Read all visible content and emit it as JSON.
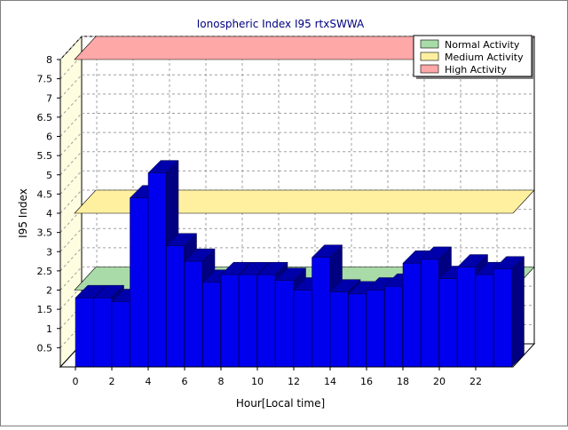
{
  "chart_data": {
    "type": "bar",
    "title": "Ionospheric Index I95 rtxSWWA",
    "xlabel": "Hour[Local time]",
    "ylabel": "I95 Index",
    "ylim": [
      0,
      8
    ],
    "yticks": [
      "0.5",
      "1",
      "1.5",
      "2",
      "2.5",
      "3",
      "3.5",
      "4",
      "4.5",
      "5",
      "5.5",
      "6",
      "6.5",
      "7",
      "7.5",
      "8"
    ],
    "xticks": [
      "0",
      "2",
      "4",
      "6",
      "8",
      "10",
      "12",
      "14",
      "16",
      "18",
      "20",
      "22"
    ],
    "hours": [
      0,
      1,
      2,
      3,
      4,
      5,
      6,
      7,
      8,
      9,
      10,
      11,
      12,
      13,
      14,
      15,
      16,
      17,
      18,
      19,
      20,
      21,
      22,
      23
    ],
    "values": [
      1.8,
      1.8,
      1.7,
      4.4,
      5.05,
      3.15,
      2.75,
      2.2,
      2.4,
      2.4,
      2.4,
      2.25,
      2.0,
      2.85,
      1.95,
      1.9,
      2.0,
      2.1,
      2.7,
      2.8,
      2.3,
      2.6,
      2.4,
      2.55
    ],
    "bar_color": "#0000ee",
    "bar_top_color": "#0000aa",
    "bar_side_color": "#000080",
    "grid": true,
    "legend_position": "top-right",
    "bands": [
      {
        "name": "Normal Activity",
        "level": 2.0,
        "color": "#a8dba8"
      },
      {
        "name": "Medium Activity",
        "level": 4.0,
        "color": "#fff0a0"
      },
      {
        "name": "High Activity",
        "level": 8.0,
        "color": "#ffa8a8"
      }
    ]
  }
}
